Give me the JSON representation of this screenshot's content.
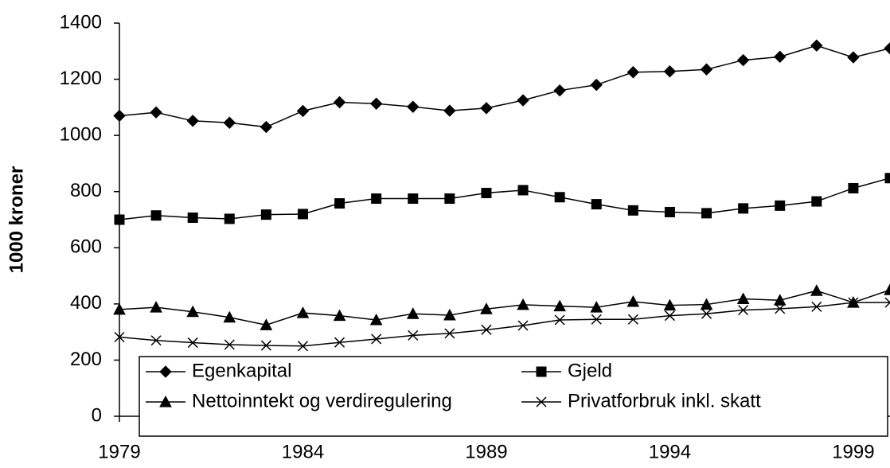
{
  "chart_data": {
    "type": "line",
    "y_label": "1000 kroner",
    "x": [
      1979,
      1980,
      1981,
      1982,
      1983,
      1984,
      1985,
      1986,
      1987,
      1988,
      1989,
      1990,
      1991,
      1992,
      1993,
      1994,
      1995,
      1996,
      1997,
      1998,
      1999,
      2000
    ],
    "series": [
      {
        "name": "Egenkapital",
        "color": "#000000",
        "marker": "diamond",
        "values": [
          1070,
          1082,
          1052,
          1045,
          1030,
          1087,
          1118,
          1113,
          1102,
          1088,
          1097,
          1125,
          1160,
          1180,
          1225,
          1228,
          1235,
          1268,
          1280,
          1320,
          1278,
          1310
        ]
      },
      {
        "name": "Gjeld",
        "color": "#000000",
        "marker": "square",
        "values": [
          700,
          715,
          707,
          703,
          718,
          720,
          758,
          775,
          775,
          775,
          795,
          805,
          780,
          755,
          733,
          727,
          723,
          740,
          750,
          765,
          812,
          848
        ]
      },
      {
        "name": "Nettoinntekt og verdiregulering",
        "color": "#000000",
        "marker": "triangle",
        "values": [
          380,
          388,
          372,
          352,
          325,
          368,
          358,
          343,
          365,
          360,
          382,
          397,
          392,
          388,
          408,
          395,
          398,
          418,
          413,
          447,
          405,
          450
        ]
      },
      {
        "name": "Privatforbruk inkl. skatt",
        "color": "#000000",
        "marker": "x",
        "values": [
          282,
          270,
          262,
          255,
          252,
          250,
          263,
          275,
          288,
          295,
          308,
          323,
          343,
          345,
          345,
          358,
          365,
          378,
          383,
          390,
          405,
          405
        ]
      }
    ],
    "xlim": [
      1979,
      2000
    ],
    "xticks": [
      1979,
      1984,
      1989,
      1994,
      1999
    ],
    "ylim": [
      0,
      1400
    ],
    "yticks": [
      0,
      200,
      400,
      600,
      800,
      1000,
      1200,
      1400
    ],
    "grid": false
  }
}
